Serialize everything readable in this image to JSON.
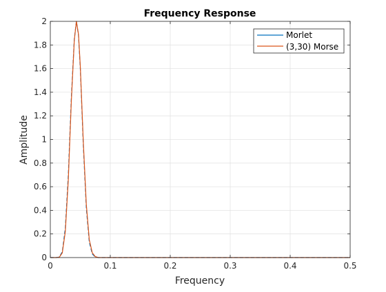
{
  "chart_data": {
    "type": "line",
    "title": "Frequency Response",
    "xlabel": "Frequency",
    "ylabel": "Amplitude",
    "xlim": [
      0,
      0.5
    ],
    "ylim": [
      0,
      2
    ],
    "x_ticks": [
      0,
      0.1,
      0.2,
      0.3,
      0.4,
      0.5
    ],
    "x_tick_labels": [
      "0",
      "0.1",
      "0.2",
      "0.3",
      "0.4",
      "0.5"
    ],
    "y_ticks": [
      0,
      0.2,
      0.4,
      0.6,
      0.8,
      1,
      1.2,
      1.4,
      1.6,
      1.8,
      2
    ],
    "y_tick_labels": [
      "0",
      "0.2",
      "0.4",
      "0.6",
      "0.8",
      "1",
      "1.2",
      "1.4",
      "1.6",
      "1.8",
      "2"
    ],
    "grid": true,
    "legend_position": "top-right",
    "series": [
      {
        "name": "Morlet",
        "color": "#0072BD",
        "dashed": true,
        "x": [
          0,
          0.01,
          0.015,
          0.02,
          0.025,
          0.03,
          0.035,
          0.04,
          0.0435,
          0.047,
          0.05,
          0.055,
          0.06,
          0.065,
          0.07,
          0.075,
          0.08,
          0.1,
          0.2,
          0.3,
          0.4,
          0.5
        ],
        "values": [
          0,
          0,
          0.005,
          0.05,
          0.25,
          0.7,
          1.35,
          1.85,
          2.0,
          1.88,
          1.6,
          0.95,
          0.42,
          0.13,
          0.03,
          0.005,
          0,
          0,
          0,
          0,
          0,
          0
        ]
      },
      {
        "name": "(3,30) Morse",
        "color": "#D95319",
        "dashed": false,
        "x": [
          0,
          0.01,
          0.015,
          0.02,
          0.025,
          0.03,
          0.035,
          0.04,
          0.0435,
          0.047,
          0.05,
          0.055,
          0.06,
          0.065,
          0.07,
          0.075,
          0.08,
          0.1,
          0.2,
          0.3,
          0.4,
          0.5
        ],
        "values": [
          0,
          0,
          0.003,
          0.04,
          0.22,
          0.66,
          1.32,
          1.84,
          2.0,
          1.89,
          1.62,
          0.98,
          0.45,
          0.15,
          0.04,
          0.008,
          0,
          0,
          0,
          0,
          0,
          0
        ]
      }
    ]
  }
}
